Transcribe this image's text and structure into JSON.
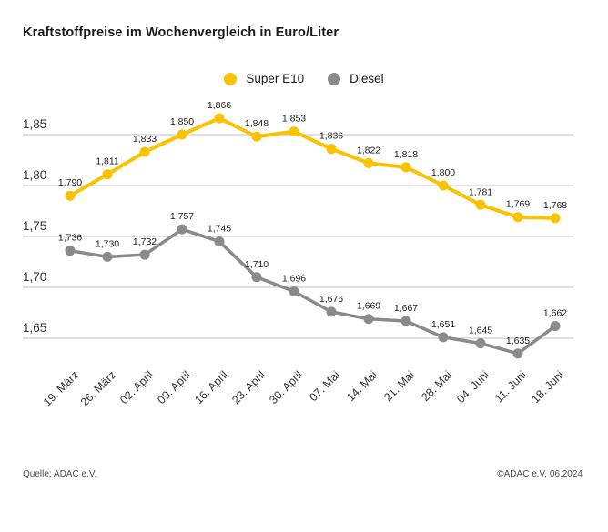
{
  "page": {
    "footer_left": "Quelle: ADAC e.V.",
    "footer_right": "©ADAC e.V. 06.2024"
  },
  "chart_data": {
    "type": "line",
    "title": "Kraftstoffpreise im Wochenvergleich in Euro/Liter",
    "unit": "Euro/Liter",
    "legend_position": "top",
    "grid": true,
    "categories": [
      "19. März",
      "26. März",
      "02. April",
      "09. April",
      "16. April",
      "23. April",
      "30. April",
      "07. Mai",
      "14. Mai",
      "21. Mai",
      "28. Mai",
      "04. Juni",
      "11. Juni",
      "18. Juni"
    ],
    "series": [
      {
        "name": "Super E10",
        "color": "#FBC200",
        "values": [
          1.79,
          1.811,
          1.833,
          1.85,
          1.866,
          1.848,
          1.853,
          1.836,
          1.822,
          1.818,
          1.8,
          1.781,
          1.769,
          1.768
        ],
        "value_labels": [
          "1,790",
          "1,811",
          "1,833",
          "1,850",
          "1,866",
          "1,848",
          "1,853",
          "1,836",
          "1,822",
          "1,818",
          "1,800",
          "1,781",
          "1,769",
          "1,768"
        ]
      },
      {
        "name": "Diesel",
        "color": "#8A8A8A",
        "values": [
          1.736,
          1.73,
          1.732,
          1.757,
          1.745,
          1.71,
          1.696,
          1.676,
          1.669,
          1.667,
          1.651,
          1.645,
          1.635,
          1.662
        ],
        "value_labels": [
          "1,736",
          "1,730",
          "1,732",
          "1,757",
          "1,745",
          "1,710",
          "1,696",
          "1,676",
          "1,669",
          "1,667",
          "1,651",
          "1,645",
          "1,635",
          "1,662"
        ]
      }
    ],
    "y_axis": {
      "tick_values": [
        1.85,
        1.8,
        1.75,
        1.7,
        1.65
      ],
      "tick_labels": [
        "1,85",
        "1,80",
        "1,75",
        "1,70",
        "1,65"
      ],
      "range": [
        1.62,
        1.89
      ]
    },
    "colors": {
      "gridline": "#C0C0C0",
      "axis_text": "#333333",
      "value_label_text": "#1a1a1a"
    }
  }
}
